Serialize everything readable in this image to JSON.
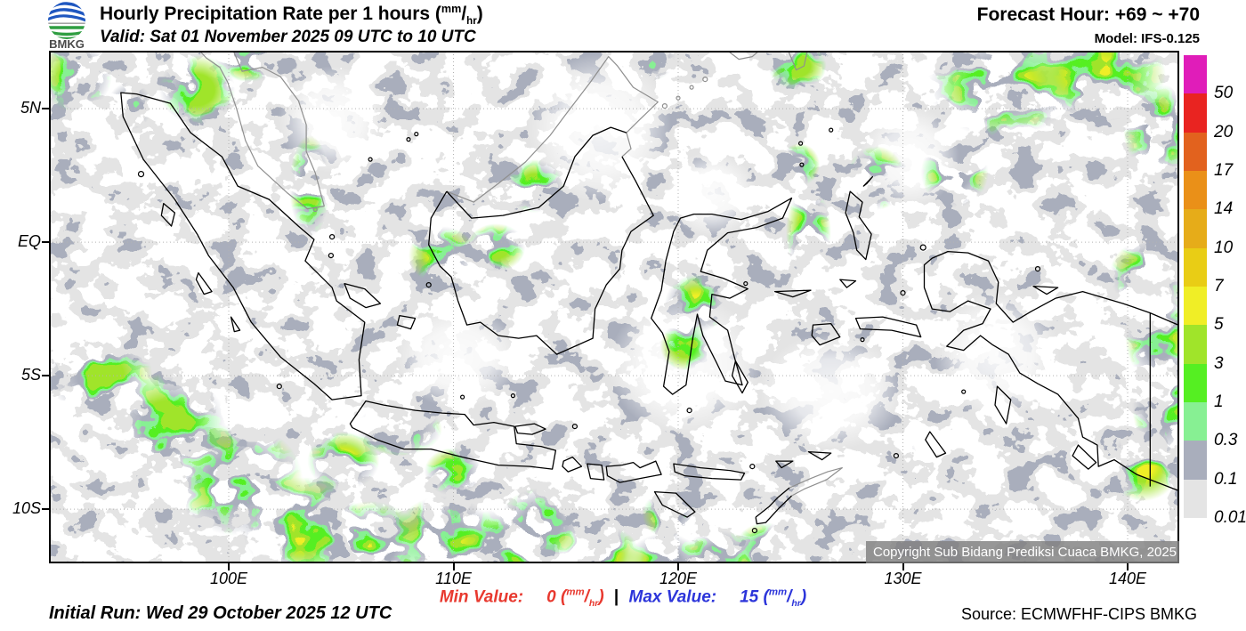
{
  "header": {
    "logo": "BMKG",
    "title": "Hourly Precipitation Rate per 1 hours ",
    "valid": "Valid: Sat 01 November 2025 09 UTC to 10 UTC",
    "forecast_hour": "Forecast Hour: +69 ~ +70",
    "model": "Model: IFS-0.125"
  },
  "units": {
    "open": "(",
    "num": "mm",
    "slash": "/",
    "den": "hr",
    "close": ")"
  },
  "map": {
    "copyright": "Copyright Sub Bidang Prediksi Cuaca BMKG, 2025"
  },
  "axes": {
    "x": [
      {
        "label": "100E",
        "lon": 100
      },
      {
        "label": "110E",
        "lon": 110
      },
      {
        "label": "120E",
        "lon": 120
      },
      {
        "label": "130E",
        "lon": 130
      },
      {
        "label": "140E",
        "lon": 140
      }
    ],
    "y": [
      {
        "label": "5N",
        "lat": 5
      },
      {
        "label": "EQ",
        "lat": 0
      },
      {
        "label": "5S",
        "lat": -5
      },
      {
        "label": "10S",
        "lat": -10
      }
    ]
  },
  "legend": {
    "labels": [
      "50",
      "20",
      "17",
      "14",
      "10",
      "7",
      "5",
      "3",
      "1",
      "0.3",
      "0.1",
      "0.01"
    ],
    "colors": [
      "#E01DB9",
      "#E92421",
      "#E2621E",
      "#EA9018",
      "#E6AC19",
      "#E9CD15",
      "#F0EE26",
      "#A0E42A",
      "#55EF22",
      "#87F093",
      "#A9AEBC",
      "#E4E4E4"
    ]
  },
  "footer": {
    "initial_run": "Initial Run: Wed 29 October 2025 12 UTC",
    "min_label": "Min Value:",
    "min_value": "0",
    "sep": "|",
    "max_label": "Max Value:",
    "max_value": "15",
    "source": "Source: ECMWFHF-CIPS BMKG"
  },
  "chart_data": {
    "type": "heatmap",
    "title": "Hourly Precipitation Rate per 1 hours (mm/hr)",
    "valid": "Sat 01 November 2025 09 UTC to 10 UTC",
    "forecast_hour": "+69 ~ +70",
    "model": "IFS-0.125",
    "initial_run": "Wed 29 October 2025 12 UTC",
    "source": "ECMWFHF-CIPS BMKG",
    "min_value": 0,
    "max_value": 15,
    "units": "mm/hr",
    "lon_range": [
      92.0,
      142.3
    ],
    "lat_range": [
      -12.03,
      7.17
    ],
    "x_ticks": [
      "100E",
      "110E",
      "120E",
      "130E",
      "140E"
    ],
    "y_ticks": [
      "5N",
      "EQ",
      "5S",
      "10S"
    ],
    "scale_levels": [
      0.01,
      0.1,
      0.3,
      1,
      3,
      5,
      7,
      10,
      14,
      17,
      20,
      50
    ],
    "scale_colors_low_to_high": [
      "#E4E4E4",
      "#A9AEBC",
      "#87F093",
      "#55EF22",
      "#A0E42A",
      "#F0EE26",
      "#E9CD15",
      "#E6AC19",
      "#EA9018",
      "#E2621E",
      "#E92421",
      "#E01DB9"
    ],
    "legend_position": "right",
    "grid": "dotted 5deg lat / 10deg lon",
    "precip_regions": [
      {
        "lon": 93.2,
        "lat": 6.2,
        "rx": 1.6,
        "ry": 1.3,
        "intensity": 0
      },
      {
        "lon": 94.3,
        "lat": -5.0,
        "rx": 2.3,
        "ry": 1.7,
        "intensity": 0
      },
      {
        "lon": 97.3,
        "lat": -6.8,
        "rx": 2.6,
        "ry": 1.9,
        "intensity": 0
      },
      {
        "lon": 100.4,
        "lat": -8.9,
        "rx": 2.9,
        "ry": 2.1,
        "intensity": 0
      },
      {
        "lon": 103.3,
        "lat": -10.7,
        "rx": 2.7,
        "ry": 1.9,
        "intensity": 1
      },
      {
        "lon": 106.3,
        "lat": -11.4,
        "rx": 2.4,
        "ry": 1.7,
        "intensity": 1
      },
      {
        "lon": 109.6,
        "lat": -11.1,
        "rx": 2.3,
        "ry": 1.6,
        "intensity": 1
      },
      {
        "lon": 112.0,
        "lat": -11.6,
        "rx": 2.3,
        "ry": 1.6,
        "intensity": 2
      },
      {
        "lon": 113.9,
        "lat": -10.6,
        "rx": 1.9,
        "ry": 1.4,
        "intensity": 1
      },
      {
        "lon": 105.1,
        "lat": -8.2,
        "rx": 1.6,
        "ry": 1.1,
        "intensity": 1
      },
      {
        "lon": 107.6,
        "lat": -7.0,
        "rx": 1.9,
        "ry": 1.0,
        "intensity": 1
      },
      {
        "lon": 110.0,
        "lat": -8.6,
        "rx": 1.3,
        "ry": 0.9,
        "intensity": 1
      },
      {
        "lon": 109.5,
        "lat": -0.5,
        "rx": 1.5,
        "ry": 1.1,
        "intensity": 1
      },
      {
        "lon": 111.9,
        "lat": -0.2,
        "rx": 1.3,
        "ry": 0.9,
        "intensity": 0
      },
      {
        "lon": 103.6,
        "lat": 2.1,
        "rx": 0.9,
        "ry": 1.9,
        "intensity": 0
      },
      {
        "lon": 98.6,
        "lat": 5.7,
        "rx": 1.7,
        "ry": 1.3,
        "intensity": 0
      },
      {
        "lon": 100.9,
        "lat": 6.9,
        "rx": 1.5,
        "ry": 0.9,
        "intensity": 1
      },
      {
        "lon": 95.6,
        "lat": 5.1,
        "rx": 1.0,
        "ry": 0.9,
        "intensity": 0
      },
      {
        "lon": 113.6,
        "lat": 2.1,
        "rx": 1.3,
        "ry": 1.0,
        "intensity": 0
      },
      {
        "lon": 120.8,
        "lat": -2.3,
        "rx": 1.4,
        "ry": 1.1,
        "intensity": 1
      },
      {
        "lon": 120.3,
        "lat": -3.9,
        "rx": 1.1,
        "ry": 0.9,
        "intensity": 0
      },
      {
        "lon": 125.8,
        "lat": 0.4,
        "rx": 1.0,
        "ry": 1.7,
        "intensity": 1
      },
      {
        "lon": 125.4,
        "lat": 2.9,
        "rx": 0.9,
        "ry": 0.8,
        "intensity": 0
      },
      {
        "lon": 128.8,
        "lat": 2.4,
        "rx": 1.3,
        "ry": 1.2,
        "intensity": 1
      },
      {
        "lon": 132.3,
        "lat": 2.6,
        "rx": 1.5,
        "ry": 1.3,
        "intensity": 0
      },
      {
        "lon": 134.4,
        "lat": 5.9,
        "rx": 3.3,
        "ry": 2.0,
        "intensity": 1
      },
      {
        "lon": 138.6,
        "lat": 6.3,
        "rx": 3.1,
        "ry": 1.8,
        "intensity": 1
      },
      {
        "lon": 141.5,
        "lat": 4.2,
        "rx": 1.7,
        "ry": 1.7,
        "intensity": 0
      },
      {
        "lon": 140.9,
        "lat": -1.2,
        "rx": 1.7,
        "ry": 1.3,
        "intensity": 0
      },
      {
        "lon": 141.4,
        "lat": -3.6,
        "rx": 1.5,
        "ry": 1.7,
        "intensity": 2
      },
      {
        "lon": 141.6,
        "lat": -6.1,
        "rx": 1.4,
        "ry": 1.9,
        "intensity": 2
      },
      {
        "lon": 140.7,
        "lat": -8.4,
        "rx": 1.6,
        "ry": 1.3,
        "intensity": 1
      },
      {
        "lon": 116.6,
        "lat": -11.7,
        "rx": 1.7,
        "ry": 1.1,
        "intensity": 1
      },
      {
        "lon": 119.4,
        "lat": -12.0,
        "rx": 1.7,
        "ry": 1.1,
        "intensity": 2
      },
      {
        "lon": 121.8,
        "lat": -11.8,
        "rx": 1.6,
        "ry": 1.0,
        "intensity": 2
      },
      {
        "lon": 123.9,
        "lat": -11.5,
        "rx": 1.4,
        "ry": 1.0,
        "intensity": 1
      },
      {
        "lon": 119.6,
        "lat": -10.2,
        "rx": 1.2,
        "ry": 0.9,
        "intensity": 0
      },
      {
        "lon": 129.8,
        "lat": -7.9,
        "rx": 0.8,
        "ry": 0.6,
        "intensity": 0
      },
      {
        "lon": 118.6,
        "lat": 6.9,
        "rx": 1.3,
        "ry": 0.9,
        "intensity": 0
      },
      {
        "lon": 125.3,
        "lat": 6.6,
        "rx": 1.3,
        "ry": 0.9,
        "intensity": 0
      }
    ],
    "dry_regions": [
      {
        "lon": 120.3,
        "lat": -4.6,
        "rx": 3.4,
        "ry": 2.6
      },
      {
        "lon": 116.5,
        "lat": 4.3,
        "rx": 3.2,
        "ry": 2.8
      },
      {
        "lon": 126.8,
        "lat": -5.6,
        "rx": 3.2,
        "ry": 2.2
      },
      {
        "lon": 134.2,
        "lat": -4.2,
        "rx": 2.8,
        "ry": 2.4
      },
      {
        "lon": 130.3,
        "lat": 3.2,
        "rx": 2.2,
        "ry": 1.9
      },
      {
        "lon": 110.2,
        "lat": -4.3,
        "rx": 2.8,
        "ry": 1.9
      },
      {
        "lon": 104.6,
        "lat": 4.6,
        "rx": 2.4,
        "ry": 2.0
      },
      {
        "lon": 121.5,
        "lat": 1.8,
        "rx": 2.0,
        "ry": 1.6
      }
    ]
  }
}
